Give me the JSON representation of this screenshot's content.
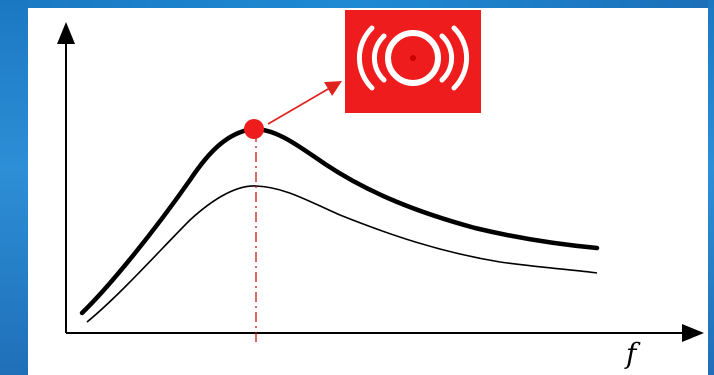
{
  "diagram": {
    "x_axis_label": "f",
    "colors": {
      "curve": "#000000",
      "peak_marker": "#ee1c1c",
      "alarm_box": "#ee1c1c",
      "alarm_symbol": "#ffffff",
      "guide_line": "#cc0000",
      "background_accent": "#1f7fcb"
    },
    "icons": {
      "alarm": "alarm-icon"
    }
  }
}
